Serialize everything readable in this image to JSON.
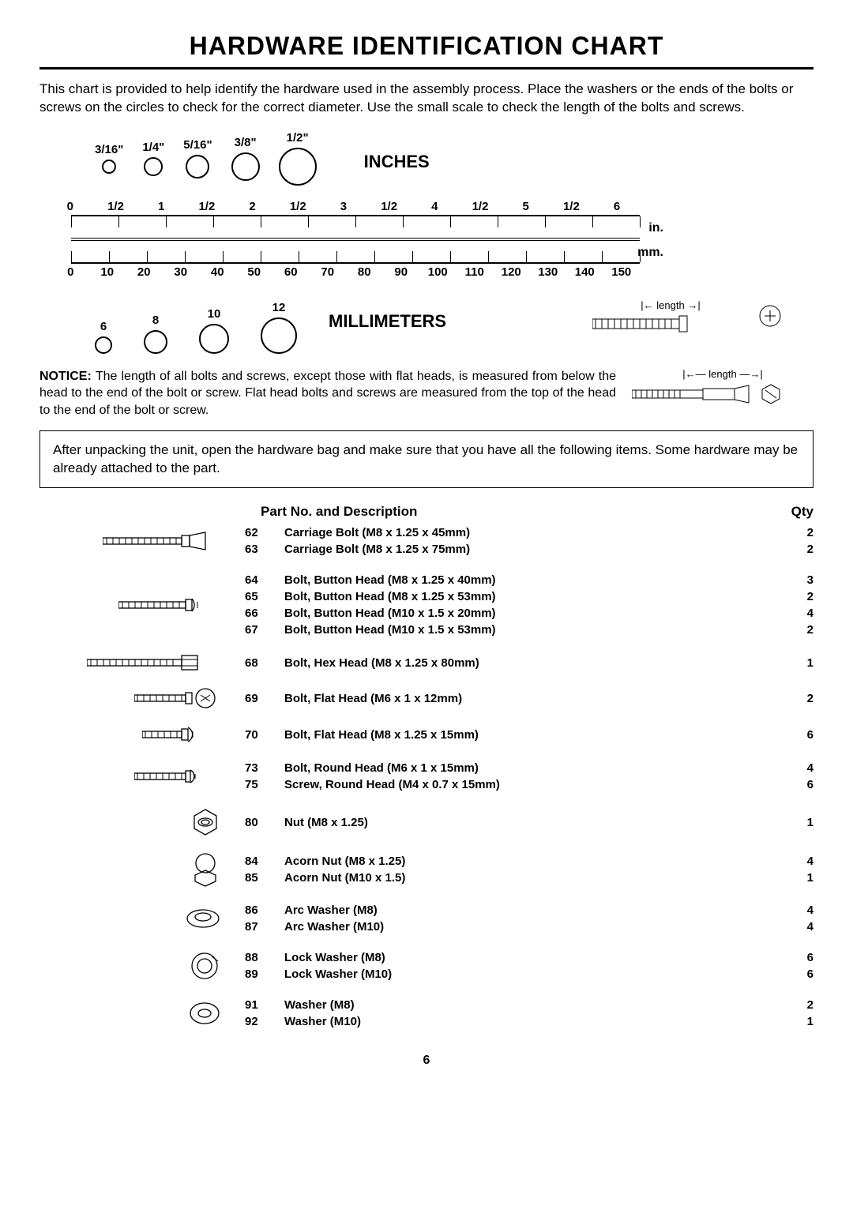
{
  "title": "HARDWARE IDENTIFICATION CHART",
  "intro": "This chart is provided to help identify the hardware used in the assembly process. Place the washers or the ends of the bolts or screws on the circles to check for the correct diameter. Use the small scale to check the length of the bolts and screws.",
  "inch_circles": [
    {
      "label": "3/16\"",
      "d": 18
    },
    {
      "label": "1/4\"",
      "d": 24
    },
    {
      "label": "5/16\"",
      "d": 30
    },
    {
      "label": "3/8\"",
      "d": 36
    },
    {
      "label": "1/2\"",
      "d": 48
    }
  ],
  "inches_label": "INCHES",
  "mm_label": "MILLIMETERS",
  "ruler_in_ticks": [
    "0",
    "1/2",
    "1",
    "1/2",
    "2",
    "1/2",
    "3",
    "1/2",
    "4",
    "1/2",
    "5",
    "1/2",
    "6"
  ],
  "ruler_mm_ticks": [
    "0",
    "10",
    "20",
    "30",
    "40",
    "50",
    "60",
    "70",
    "80",
    "90",
    "100",
    "110",
    "120",
    "130",
    "140",
    "150"
  ],
  "unit_in": "in.",
  "unit_mm": "mm.",
  "mm_circles": [
    {
      "label": "6",
      "d": 22
    },
    {
      "label": "8",
      "d": 30
    },
    {
      "label": "10",
      "d": 38
    },
    {
      "label": "12",
      "d": 46
    }
  ],
  "length_label": "length",
  "notice_label": "NOTICE:",
  "notice_text": "The length of all bolts and screws, except those with flat heads, is measured from below the head to the end of the bolt or screw. Flat head bolts and screws are measured from the top of the head to the end of the bolt or screw.",
  "box_note": "After unpacking the unit, open the hardware bag and make sure that you have all the following items. Some hardware may be already attached to the part.",
  "parts_head_desc": "Part No. and Description",
  "parts_head_qty": "Qty",
  "groups": [
    {
      "icon": "carriage",
      "rows": [
        {
          "pn": "62",
          "pd": "Carriage Bolt (M8 x 1.25 x 45mm)",
          "pq": "2"
        },
        {
          "pn": "63",
          "pd": "Carriage Bolt (M8 x 1.25 x 75mm)",
          "pq": "2"
        }
      ]
    },
    {
      "icon": "button",
      "rows": [
        {
          "pn": "64",
          "pd": "Bolt, Button Head (M8 x 1.25 x 40mm)",
          "pq": "3"
        },
        {
          "pn": "65",
          "pd": "Bolt, Button Head (M8 x 1.25 x 53mm)",
          "pq": "2"
        },
        {
          "pn": "66",
          "pd": "Bolt, Button Head (M10 x 1.5 x 20mm)",
          "pq": "4"
        },
        {
          "pn": "67",
          "pd": "Bolt, Button Head (M10 x 1.5 x 53mm)",
          "pq": "2"
        }
      ]
    },
    {
      "icon": "hex",
      "rows": [
        {
          "pn": "68",
          "pd": "Bolt, Hex Head (M8 x 1.25 x 80mm)",
          "pq": "1"
        }
      ]
    },
    {
      "icon": "flat1",
      "rows": [
        {
          "pn": "69",
          "pd": "Bolt, Flat Head (M6 x 1 x 12mm)",
          "pq": "2"
        }
      ]
    },
    {
      "icon": "flat2",
      "rows": [
        {
          "pn": "70",
          "pd": "Bolt, Flat Head (M8 x 1.25 x 15mm)",
          "pq": "6"
        }
      ]
    },
    {
      "icon": "round",
      "rows": [
        {
          "pn": "73",
          "pd": "Bolt, Round Head (M6 x 1 x 15mm)",
          "pq": "4"
        },
        {
          "pn": "75",
          "pd": "Screw, Round Head (M4 x 0.7 x 15mm)",
          "pq": "6"
        }
      ]
    },
    {
      "icon": "nut",
      "rows": [
        {
          "pn": "80",
          "pd": "Nut (M8 x 1.25)",
          "pq": "1"
        }
      ]
    },
    {
      "icon": "acorn",
      "rows": [
        {
          "pn": "84",
          "pd": "Acorn Nut (M8 x 1.25)",
          "pq": "4"
        },
        {
          "pn": "85",
          "pd": "Acorn Nut (M10 x 1.5)",
          "pq": "1"
        }
      ]
    },
    {
      "icon": "arc",
      "rows": [
        {
          "pn": "86",
          "pd": "Arc Washer (M8)",
          "pq": "4"
        },
        {
          "pn": "87",
          "pd": "Arc Washer (M10)",
          "pq": "4"
        }
      ]
    },
    {
      "icon": "lock",
      "rows": [
        {
          "pn": "88",
          "pd": "Lock Washer (M8)",
          "pq": "6"
        },
        {
          "pn": "89",
          "pd": "Lock Washer (M10)",
          "pq": "6"
        }
      ]
    },
    {
      "icon": "washer",
      "rows": [
        {
          "pn": "91",
          "pd": "Washer (M8)",
          "pq": "2"
        },
        {
          "pn": "92",
          "pd": "Washer (M10)",
          "pq": "1"
        }
      ]
    }
  ],
  "page_num": "6"
}
